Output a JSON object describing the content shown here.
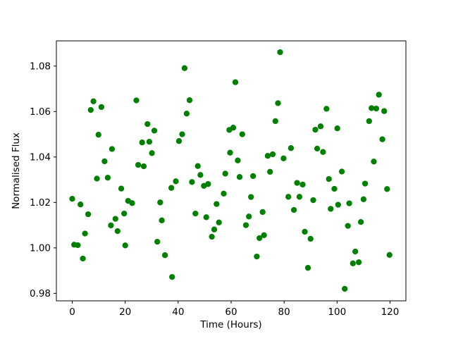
{
  "chart_data": {
    "type": "scatter",
    "title": "",
    "xlabel": "Time (Hours)",
    "ylabel": "Normalised Flux",
    "marker_color": "#008000",
    "axis_color": "#000000",
    "background_color": "#ffffff",
    "grid": false,
    "legend": null,
    "xlim": [
      -6,
      126
    ],
    "ylim": [
      0.9767,
      1.0911
    ],
    "xticks": [
      0,
      20,
      40,
      60,
      80,
      100,
      120
    ],
    "xtick_labels": [
      "0",
      "20",
      "40",
      "60",
      "80",
      "100",
      "120"
    ],
    "yticks": [
      0.98,
      1.0,
      1.02,
      1.04,
      1.06,
      1.08
    ],
    "ytick_labels": [
      "0.98",
      "1.00",
      "1.02",
      "1.04",
      "1.06",
      "1.08"
    ],
    "x": [
      0.0,
      0.7,
      2.1,
      3.1,
      4.0,
      4.8,
      6.0,
      7.0,
      8.0,
      9.3,
      9.9,
      11.0,
      12.2,
      13.4,
      14.6,
      15.0,
      16.3,
      17.1,
      18.5,
      19.6,
      20.0,
      21.1,
      22.6,
      24.2,
      24.9,
      26.4,
      27.0,
      28.4,
      29.1,
      30.1,
      31.0,
      32.1,
      33.2,
      33.8,
      35.0,
      37.4,
      37.7,
      39.1,
      40.3,
      41.5,
      42.4,
      43.2,
      44.3,
      45.2,
      46.5,
      47.4,
      48.4,
      49.7,
      50.6,
      51.3,
      52.7,
      53.6,
      54.5,
      55.4,
      57.2,
      57.8,
      59.3,
      59.6,
      60.8,
      61.6,
      62.5,
      63.2,
      64.2,
      65.6,
      66.7,
      67.5,
      68.3,
      69.7,
      70.7,
      71.9,
      72.4,
      73.8,
      74.7,
      75.7,
      76.7,
      77.7,
      78.5,
      79.8,
      81.6,
      82.6,
      83.7,
      84.9,
      85.8,
      87.0,
      87.8,
      89.0,
      90.0,
      91.0,
      91.8,
      92.5,
      93.8,
      94.7,
      96.0,
      96.9,
      97.6,
      99.0,
      100.1,
      100.4,
      101.8,
      102.9,
      104.1,
      104.6,
      106.0,
      106.9,
      108.2,
      109.0,
      110.0,
      110.6,
      112.1,
      113.0,
      113.9,
      114.8,
      115.8,
      117.1,
      117.8,
      118.9,
      119.8
    ],
    "y": [
      1.0216,
      1.0014,
      1.0012,
      1.0191,
      0.9953,
      1.0063,
      1.0148,
      1.0607,
      1.0645,
      1.0305,
      1.0498,
      1.062,
      1.0381,
      1.0309,
      1.0099,
      1.0435,
      1.0128,
      1.0074,
      1.0261,
      1.0151,
      1.0011,
      1.0207,
      1.0197,
      1.0649,
      1.0365,
      1.0464,
      1.0359,
      1.0545,
      1.0467,
      1.0417,
      1.0516,
      1.0027,
      1.02,
      1.0121,
      0.9968,
      1.0264,
      0.9872,
      1.0293,
      1.047,
      1.05,
      1.0791,
      1.0591,
      1.065,
      1.029,
      1.0151,
      1.036,
      1.0321,
      1.0273,
      1.0135,
      1.0281,
      1.0049,
      1.0081,
      1.0193,
      1.0112,
      1.0239,
      1.0327,
      1.0519,
      1.0419,
      1.0529,
      1.0729,
      1.0385,
      1.0312,
      1.05,
      1.01,
      1.0138,
      1.0224,
      1.0316,
      0.9962,
      1.0043,
      1.0158,
      1.0056,
      1.0405,
      1.0335,
      1.0412,
      1.0558,
      1.0637,
      1.0861,
      1.0394,
      1.0225,
      1.0439,
      1.0167,
      1.0286,
      1.0225,
      1.0279,
      1.0071,
      0.9912,
      1.004,
      1.021,
      1.052,
      1.0437,
      1.0535,
      1.0422,
      1.0612,
      1.0303,
      1.0172,
      1.026,
      1.0526,
      1.019,
      1.0336,
      0.982,
      1.0097,
      1.0196,
      0.9932,
      0.9984,
      0.9937,
      1.0114,
      1.0214,
      1.0283,
      1.0558,
      1.0615,
      1.038,
      1.0613,
      1.0674,
      1.0478,
      1.0602,
      1.0259,
      0.9969
    ]
  }
}
